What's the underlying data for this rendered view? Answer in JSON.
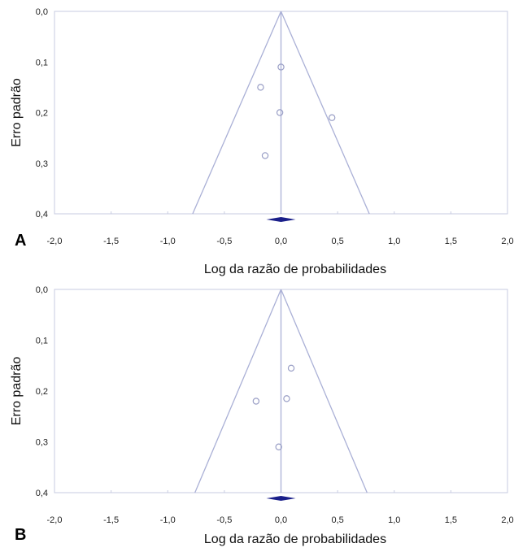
{
  "chart_data": [
    {
      "type": "scatter",
      "panel_label": "A",
      "xlabel": "Log da razão de probabilidades",
      "ylabel": "Erro padrão",
      "xlim": [
        -2.0,
        2.0
      ],
      "ylim": [
        0.0,
        0.4
      ],
      "y_inverted": true,
      "x_ticks": [
        "-2,0",
        "-1,5",
        "-1,0",
        "-0,5",
        "0,0",
        "0,5",
        "1,0",
        "1,5",
        "2,0"
      ],
      "y_ticks": [
        "0,0",
        "0,1",
        "0,2",
        "0,3",
        "0,4"
      ],
      "points": [
        {
          "x": 0.0,
          "y": 0.11
        },
        {
          "x": -0.18,
          "y": 0.15
        },
        {
          "x": -0.01,
          "y": 0.2
        },
        {
          "x": 0.45,
          "y": 0.21
        },
        {
          "x": -0.14,
          "y": 0.285
        }
      ],
      "pooled_estimate": 0.0,
      "funnel_limits": {
        "x_at_max_se": [
          -0.78,
          0.78
        ],
        "max_se": 0.4
      },
      "grid": false,
      "colors": {
        "points": "#9a9fc6",
        "funnel": "#aab0d6",
        "diamond": "#1a1f8a",
        "axis": "#c7cbe0"
      }
    },
    {
      "type": "scatter",
      "panel_label": "B",
      "xlabel": "Log da razão de probabilidades",
      "ylabel": "Erro padrão",
      "xlim": [
        -2.0,
        2.0
      ],
      "ylim": [
        0.0,
        0.4
      ],
      "y_inverted": true,
      "x_ticks": [
        "-2,0",
        "-1,5",
        "-1,0",
        "-0,5",
        "0,0",
        "0,5",
        "1,0",
        "1,5",
        "2,0"
      ],
      "y_ticks": [
        "0,0",
        "0,1",
        "0,2",
        "0,3",
        "0,4"
      ],
      "points": [
        {
          "x": 0.09,
          "y": 0.155
        },
        {
          "x": -0.22,
          "y": 0.22
        },
        {
          "x": 0.05,
          "y": 0.215
        },
        {
          "x": -0.02,
          "y": 0.31
        }
      ],
      "pooled_estimate": 0.0,
      "funnel_limits": {
        "x_at_max_se": [
          -0.76,
          0.76
        ],
        "max_se": 0.4
      },
      "grid": false,
      "colors": {
        "points": "#9a9fc6",
        "funnel": "#aab0d6",
        "diamond": "#1a1f8a",
        "axis": "#c7cbe0"
      }
    }
  ]
}
